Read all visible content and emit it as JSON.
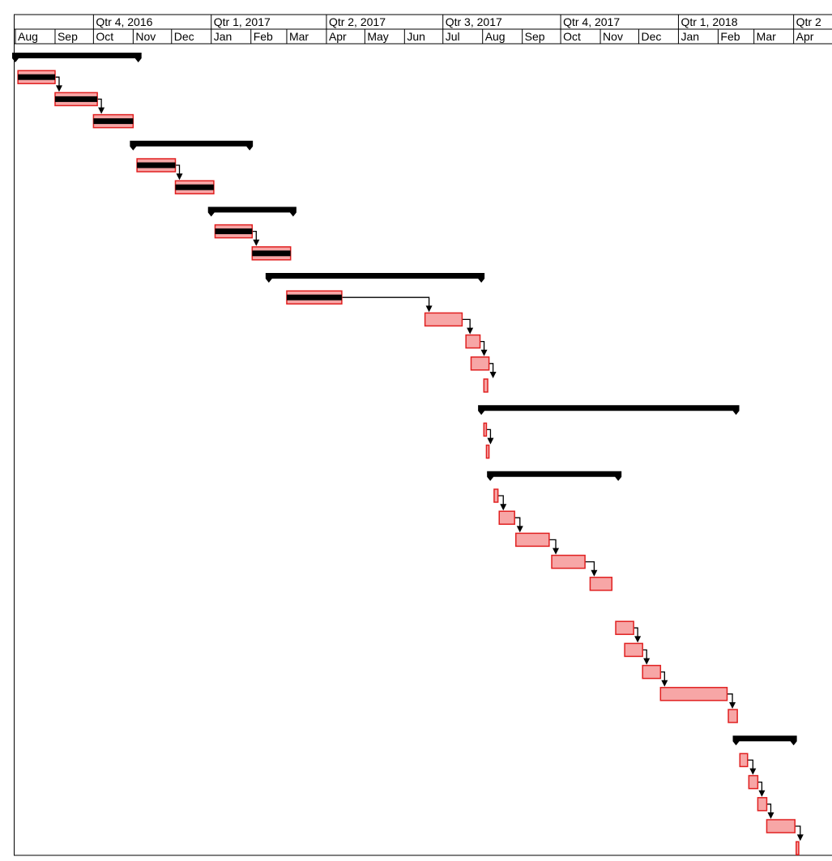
{
  "colors": {
    "bar_fill": "#f7a6a6",
    "bar_stroke": "#e02020",
    "summary": "#000000",
    "progress": "#000000",
    "link": "#000000",
    "grid": "#000000"
  },
  "chart_data": {
    "type": "gantt",
    "title": "",
    "quarters": [
      "Qtr 4, 2016",
      "Qtr 1, 2017",
      "Qtr 2, 2017",
      "Qtr 3, 2017",
      "Qtr 4, 2017",
      "Qtr 1, 2018",
      "Qtr 2"
    ],
    "months": [
      "Aug",
      "Sep",
      "Oct",
      "Nov",
      "Dec",
      "Jan",
      "Feb",
      "Mar",
      "Apr",
      "May",
      "Jun",
      "Jul",
      "Aug",
      "Sep",
      "Oct",
      "Nov",
      "Dec",
      "Jan",
      "Feb",
      "Mar",
      "Apr"
    ],
    "timeline_start": "2016-08-01",
    "summaries": [
      {
        "row": 0,
        "start": "2016-08-01",
        "end": "2016-11-05"
      },
      {
        "row": 4,
        "start": "2016-11-01",
        "end": "2017-01-31"
      },
      {
        "row": 7,
        "start": "2017-01-01",
        "end": "2017-03-06"
      },
      {
        "row": 10,
        "start": "2017-02-15",
        "end": "2017-07-31"
      },
      {
        "row": 16,
        "start": "2017-07-31",
        "end": "2018-02-15"
      },
      {
        "row": 19,
        "start": "2017-08-07",
        "end": "2017-11-15"
      },
      {
        "row": 31,
        "start": "2018-02-15",
        "end": "2018-04-01"
      }
    ],
    "tasks": [
      {
        "row": 1,
        "start": "2016-08-03",
        "end": "2016-09-01",
        "progress": 1
      },
      {
        "row": 2,
        "start": "2016-09-01",
        "end": "2016-10-04",
        "progress": 1
      },
      {
        "row": 3,
        "start": "2016-10-01",
        "end": "2016-11-01",
        "progress": 1
      },
      {
        "row": 5,
        "start": "2016-11-04",
        "end": "2016-12-04",
        "progress": 1
      },
      {
        "row": 6,
        "start": "2016-12-04",
        "end": "2017-01-03",
        "progress": 1
      },
      {
        "row": 8,
        "start": "2017-01-04",
        "end": "2017-02-02",
        "progress": 1
      },
      {
        "row": 9,
        "start": "2017-02-02",
        "end": "2017-03-04",
        "progress": 1
      },
      {
        "row": 11,
        "start": "2017-03-01",
        "end": "2017-04-13",
        "progress": 1
      },
      {
        "row": 12,
        "start": "2017-06-17",
        "end": "2017-07-16",
        "progress": 0
      },
      {
        "row": 13,
        "start": "2017-07-19",
        "end": "2017-07-30",
        "progress": 0
      },
      {
        "row": 14,
        "start": "2017-07-23",
        "end": "2017-08-06",
        "progress": 0
      },
      {
        "row": 15,
        "start": "2017-08-02",
        "end": "2017-08-05",
        "progress": 0
      },
      {
        "row": 17,
        "start": "2017-08-02",
        "end": "2017-08-04",
        "progress": 0
      },
      {
        "row": 18,
        "start": "2017-08-04",
        "end": "2017-08-06",
        "progress": 0
      },
      {
        "row": 20,
        "start": "2017-08-10",
        "end": "2017-08-13",
        "progress": 0
      },
      {
        "row": 21,
        "start": "2017-08-14",
        "end": "2017-08-26",
        "progress": 0
      },
      {
        "row": 22,
        "start": "2017-08-27",
        "end": "2017-09-22",
        "progress": 0
      },
      {
        "row": 23,
        "start": "2017-09-24",
        "end": "2017-10-20",
        "progress": 0
      },
      {
        "row": 24,
        "start": "2017-10-24",
        "end": "2017-11-10",
        "progress": 0
      },
      {
        "row": 26,
        "start": "2017-11-13",
        "end": "2017-11-27",
        "progress": 0
      },
      {
        "row": 27,
        "start": "2017-11-20",
        "end": "2017-12-04",
        "progress": 0
      },
      {
        "row": 28,
        "start": "2017-12-04",
        "end": "2017-12-18",
        "progress": 0
      },
      {
        "row": 29,
        "start": "2017-12-18",
        "end": "2018-02-08",
        "progress": 0
      },
      {
        "row": 30,
        "start": "2018-02-09",
        "end": "2018-02-16",
        "progress": 0
      },
      {
        "row": 32,
        "start": "2018-02-18",
        "end": "2018-02-24",
        "progress": 0
      },
      {
        "row": 33,
        "start": "2018-02-25",
        "end": "2018-03-04",
        "progress": 0
      },
      {
        "row": 34,
        "start": "2018-03-04",
        "end": "2018-03-11",
        "progress": 0
      },
      {
        "row": 35,
        "start": "2018-03-11",
        "end": "2018-04-02",
        "progress": 0
      },
      {
        "row": 36,
        "start": "2018-04-03",
        "end": "2018-04-05",
        "progress": 0
      }
    ],
    "links": [
      [
        1,
        2
      ],
      [
        2,
        3
      ],
      [
        5,
        6
      ],
      [
        8,
        9
      ],
      [
        11,
        12
      ],
      [
        12,
        13
      ],
      [
        13,
        14
      ],
      [
        14,
        15
      ],
      [
        17,
        18
      ],
      [
        20,
        21
      ],
      [
        21,
        22
      ],
      [
        22,
        23
      ],
      [
        23,
        24
      ],
      [
        26,
        27
      ],
      [
        27,
        28
      ],
      [
        28,
        29
      ],
      [
        29,
        30
      ],
      [
        32,
        33
      ],
      [
        33,
        34
      ],
      [
        34,
        35
      ],
      [
        35,
        36
      ]
    ]
  }
}
